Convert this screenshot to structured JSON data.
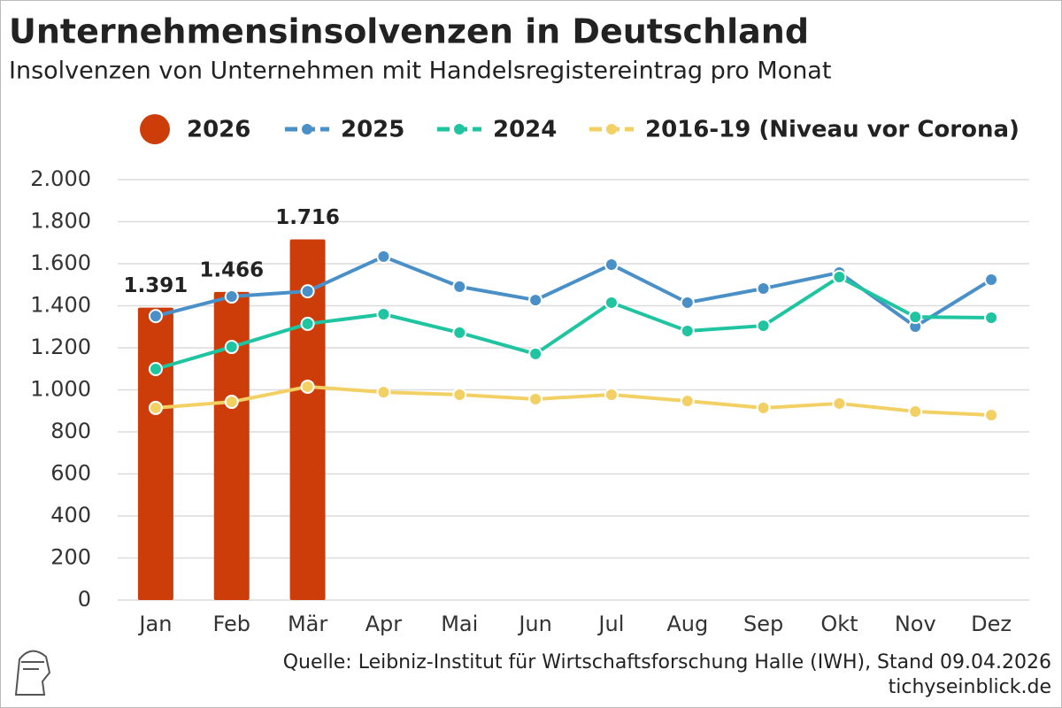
{
  "chart_data": {
    "type": "combo",
    "title": "Unternehmensinsolvenzen in Deutschland",
    "subtitle": "Insolvenzen von Unternehmen mit Handelsregistereintrag pro Monat",
    "source": "Quelle: Leibniz-Institut für Wirtschaftsforschung Halle (IWH), Stand 09.04.2026",
    "site": "tichyseinblick.de",
    "categories": [
      "Jan",
      "Feb",
      "Mär",
      "Apr",
      "Mai",
      "Jun",
      "Jul",
      "Aug",
      "Sep",
      "Okt",
      "Nov",
      "Dez"
    ],
    "ylim": [
      0,
      2000
    ],
    "yticks": [
      0,
      200,
      400,
      600,
      800,
      {
        "value": 1000,
        "label": "1.000"
      },
      {
        "value": 1200,
        "label": "1.200"
      },
      {
        "value": 1400,
        "label": "1.400"
      },
      {
        "value": 1600,
        "label": "1.600"
      },
      {
        "value": 1800,
        "label": "1.800"
      },
      {
        "value": 2000,
        "label": "2.000"
      }
    ],
    "grid": true,
    "series": [
      {
        "name": "2026",
        "type": "bar",
        "color": "#cc3d0a",
        "values": [
          1391,
          1466,
          1716,
          null,
          null,
          null,
          null,
          null,
          null,
          null,
          null,
          null
        ],
        "value_labels": [
          "1.391",
          "1.466",
          "1.716",
          null,
          null,
          null,
          null,
          null,
          null,
          null,
          null,
          null
        ]
      },
      {
        "name": "2025",
        "type": "line",
        "color": "#4a90c8",
        "values": [
          1351,
          1444,
          1469,
          1634,
          1491,
          1427,
          1596,
          1415,
          1482,
          1558,
          1301,
          1524
        ]
      },
      {
        "name": "2024",
        "type": "line",
        "color": "#1fc4a0",
        "values": [
          1099,
          1204,
          1314,
          1360,
          1272,
          1171,
          1415,
          1280,
          1305,
          1537,
          1347,
          1343
        ]
      },
      {
        "name": "2016-19 (Niveau vor Corona)",
        "type": "line",
        "color": "#f2d064",
        "values": [
          914,
          943,
          1015,
          989,
          977,
          956,
          977,
          947,
          914,
          935,
          897,
          880
        ]
      }
    ]
  }
}
